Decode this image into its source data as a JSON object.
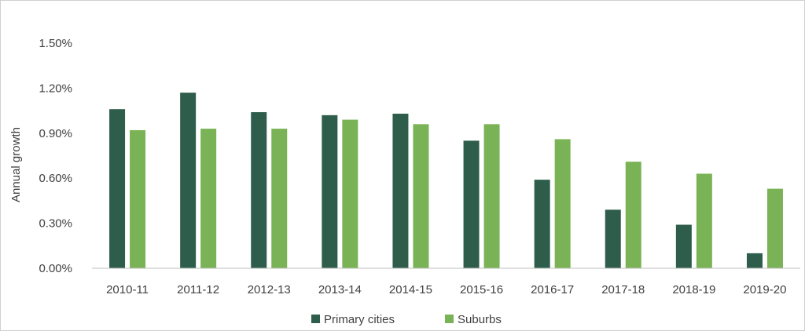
{
  "chart_data": {
    "type": "bar",
    "title": "",
    "xlabel": "",
    "ylabel": "Annual growth",
    "categories": [
      "2010-11",
      "2011-12",
      "2012-13",
      "2013-14",
      "2014-15",
      "2015-16",
      "2016-17",
      "2017-18",
      "2018-19",
      "2019-20"
    ],
    "series": [
      {
        "name": "Primary cities",
        "color": "#2e5e4b",
        "values": [
          1.06,
          1.17,
          1.04,
          1.02,
          1.03,
          0.85,
          0.59,
          0.39,
          0.29,
          0.1
        ]
      },
      {
        "name": "Suburbs",
        "color": "#7ab356",
        "values": [
          0.92,
          0.93,
          0.93,
          0.99,
          0.96,
          0.96,
          0.86,
          0.71,
          0.63,
          0.53
        ]
      }
    ],
    "ylim": [
      0,
      1.5
    ],
    "yticks": [
      "0.00%",
      "0.30%",
      "0.60%",
      "0.90%",
      "1.20%",
      "1.50%"
    ],
    "ytick_values": [
      0,
      0.3,
      0.6,
      0.9,
      1.2,
      1.5
    ],
    "grid": false,
    "legend_position": "bottom"
  }
}
